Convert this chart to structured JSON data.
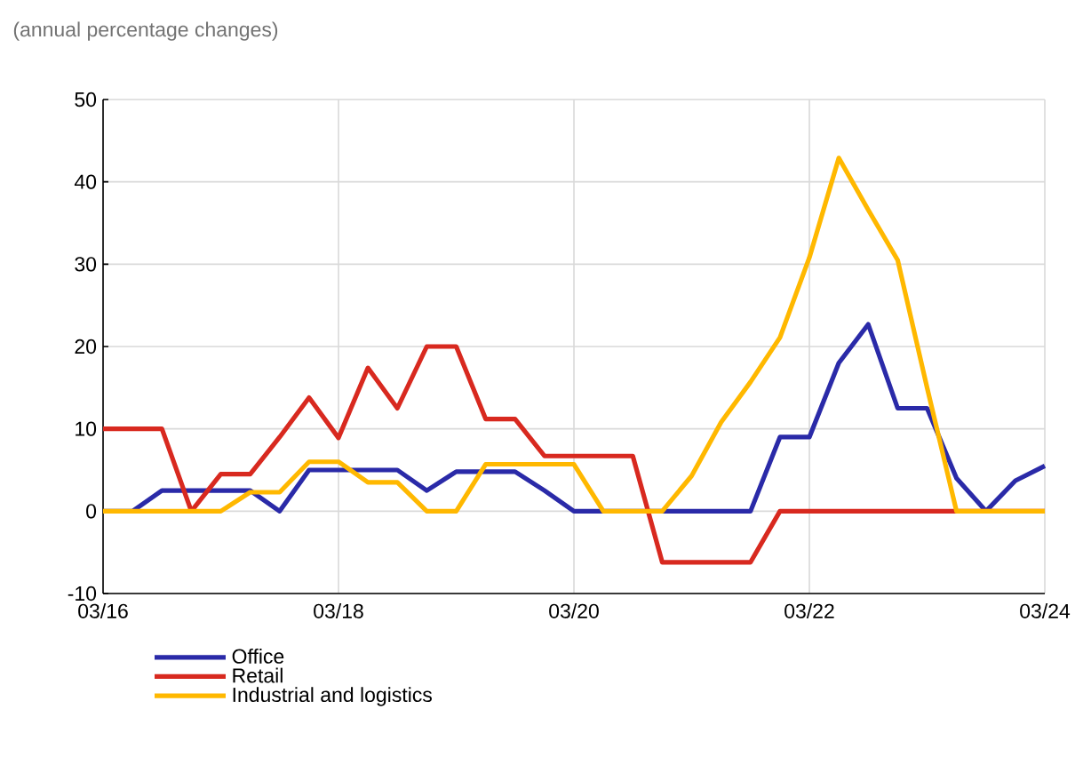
{
  "chart_data": {
    "type": "line",
    "subtitle": "(annual percentage changes)",
    "x": [
      "2016-03",
      "2016-06",
      "2016-09",
      "2016-12",
      "2017-03",
      "2017-06",
      "2017-09",
      "2017-12",
      "2018-03",
      "2018-06",
      "2018-09",
      "2018-12",
      "2019-03",
      "2019-06",
      "2019-09",
      "2019-12",
      "2020-03",
      "2020-06",
      "2020-09",
      "2020-12",
      "2021-03",
      "2021-06",
      "2021-09",
      "2021-12",
      "2022-03",
      "2022-06",
      "2022-09",
      "2022-12",
      "2023-03",
      "2023-06",
      "2023-09",
      "2023-12",
      "2024-03"
    ],
    "series": [
      {
        "name": "Office",
        "color": "#2a2aa8",
        "values": [
          0,
          0,
          2.5,
          2.5,
          2.5,
          2.5,
          0,
          5,
          5,
          5,
          5,
          2.5,
          4.8,
          4.8,
          4.8,
          2.5,
          0,
          0,
          0,
          0,
          0,
          0,
          0,
          9,
          9,
          18,
          22.7,
          12.5,
          12.5,
          4,
          0,
          3.7,
          5.5
        ]
      },
      {
        "name": "Retail",
        "color": "#d8291f",
        "values": [
          10,
          10,
          10,
          0,
          4.5,
          4.5,
          9,
          13.8,
          8.9,
          17.4,
          12.5,
          20,
          20,
          11.2,
          11.2,
          6.7,
          6.7,
          6.7,
          6.7,
          -6.2,
          -6.2,
          -6.2,
          -6.2,
          0,
          0,
          0,
          0,
          0,
          0,
          0,
          0,
          0,
          0
        ]
      },
      {
        "name": "Industrial and logistics",
        "color": "#ffb800",
        "values": [
          0,
          0,
          0,
          0,
          0,
          2.3,
          2.3,
          6,
          6,
          3.5,
          3.5,
          0,
          0,
          5.7,
          5.7,
          5.7,
          5.7,
          0,
          0,
          0,
          4.3,
          10.8,
          15.7,
          21.1,
          30.8,
          42.9,
          36.6,
          30.5,
          15,
          0,
          0,
          0,
          0
        ]
      }
    ],
    "xlim": [
      "2016-03",
      "2024-03"
    ],
    "xticks": [
      {
        "value": "2016-03",
        "label": "03/16"
      },
      {
        "value": "2018-03",
        "label": "03/18"
      },
      {
        "value": "2020-03",
        "label": "03/20"
      },
      {
        "value": "2022-03",
        "label": "03/22"
      },
      {
        "value": "2024-03",
        "label": "03/24"
      }
    ],
    "ylim": [
      -10,
      50
    ],
    "yticks": [
      -10,
      0,
      10,
      20,
      30,
      40,
      50
    ],
    "grid": true,
    "legend": "bottom left",
    "marker": "none",
    "line_style": "solid"
  }
}
